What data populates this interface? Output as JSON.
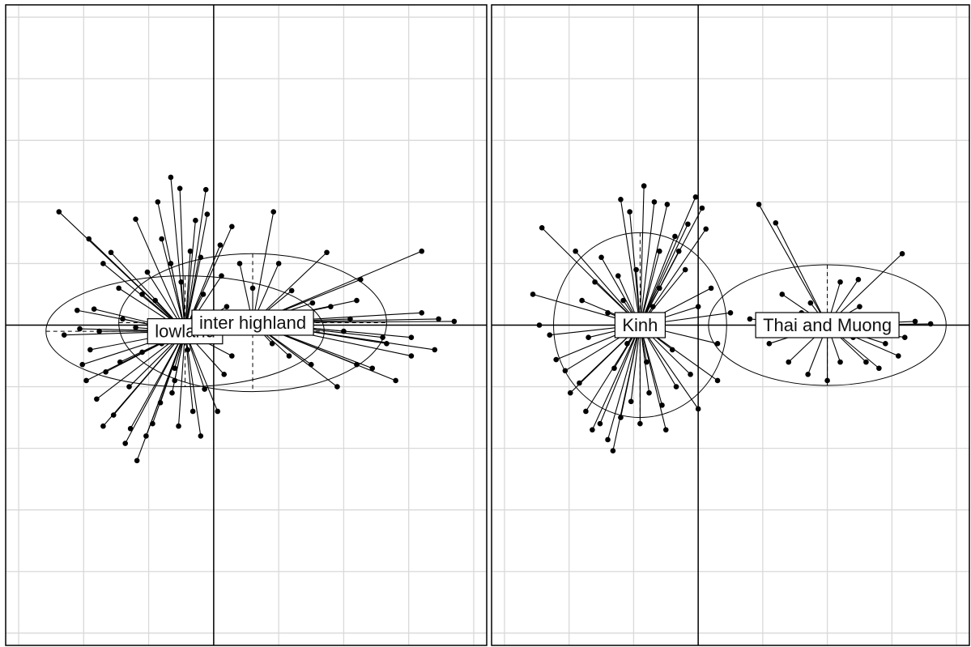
{
  "chart_data": [
    {
      "type": "scatter",
      "subtype": "class-star-ellipse",
      "xlim": [
        -1.6,
        2.1
      ],
      "ylim": [
        -2.6,
        2.6
      ],
      "grid": true,
      "grid_step": 0.5,
      "grid_color": "#d9d9d9",
      "axis_color": "#000000",
      "groups": [
        {
          "name": "lowland",
          "center": [
            -0.22,
            -0.05
          ],
          "ellipse": {
            "rx": 1.07,
            "ry": 0.45,
            "rotation_deg": 0
          },
          "points": [
            [
              -1.19,
              0.92
            ],
            [
              -0.96,
              0.7
            ],
            [
              -0.79,
              0.59
            ],
            [
              -0.6,
              0.86
            ],
            [
              -0.43,
              1.0
            ],
            [
              -0.33,
              1.2
            ],
            [
              -0.06,
              1.1
            ],
            [
              -0.14,
              0.85
            ],
            [
              -0.26,
              1.11
            ],
            [
              -0.51,
              0.43
            ],
            [
              -0.73,
              0.3
            ],
            [
              -0.92,
              0.13
            ],
            [
              -1.05,
              0.12
            ],
            [
              -0.7,
              0.05
            ],
            [
              -0.45,
              0.2
            ],
            [
              -0.33,
              0.5
            ],
            [
              -0.1,
              0.55
            ],
            [
              0.06,
              0.4
            ],
            [
              0.14,
              0.8
            ],
            [
              0.05,
              0.65
            ],
            [
              -0.18,
              0.6
            ],
            [
              -0.08,
              0.25
            ],
            [
              0.1,
              0.15
            ],
            [
              -0.6,
              -0.02
            ],
            [
              -0.88,
              -0.05
            ],
            [
              -1.03,
              -0.03
            ],
            [
              -1.15,
              -0.08
            ],
            [
              -1.01,
              -0.32
            ],
            [
              -0.98,
              -0.45
            ],
            [
              -0.9,
              -0.6
            ],
            [
              -0.85,
              -0.82
            ],
            [
              -0.77,
              -0.73
            ],
            [
              -0.68,
              -0.96
            ],
            [
              -0.64,
              -0.84
            ],
            [
              -0.59,
              -1.1
            ],
            [
              -0.52,
              -0.9
            ],
            [
              -0.47,
              -0.8
            ],
            [
              -0.41,
              -0.63
            ],
            [
              -0.32,
              -0.55
            ],
            [
              -0.3,
              -0.35
            ],
            [
              -0.27,
              -0.82
            ],
            [
              -0.3,
              -0.45
            ],
            [
              -0.16,
              -0.7
            ],
            [
              -0.07,
              -0.52
            ],
            [
              0.03,
              -0.7
            ],
            [
              0.08,
              -0.4
            ],
            [
              0.14,
              -0.25
            ],
            [
              -0.55,
              -0.22
            ],
            [
              -0.72,
              -0.3
            ],
            [
              -0.4,
              -0.15
            ],
            [
              -0.2,
              -0.2
            ],
            [
              -0.1,
              -0.9
            ],
            [
              -0.83,
              -0.38
            ],
            [
              -0.95,
              -0.2
            ],
            [
              -0.65,
              -0.5
            ],
            [
              -0.25,
              0.35
            ],
            [
              -0.4,
              0.7
            ],
            [
              -0.55,
              0.25
            ],
            [
              -0.85,
              0.5
            ],
            [
              -0.05,
              0.9
            ]
          ]
        },
        {
          "name": "inter highland",
          "center": [
            0.3,
            0.02
          ],
          "ellipse": {
            "rx": 1.03,
            "ry": 0.56,
            "rotation_deg": 0
          },
          "points": [
            [
              0.46,
              0.92
            ],
            [
              0.87,
              0.59
            ],
            [
              1.13,
              0.37
            ],
            [
              1.6,
              0.6
            ],
            [
              1.73,
              0.05
            ],
            [
              1.85,
              0.03
            ],
            [
              1.7,
              -0.2
            ],
            [
              1.52,
              -0.25
            ],
            [
              1.4,
              -0.45
            ],
            [
              1.22,
              -0.35
            ],
            [
              1.1,
              -0.32
            ],
            [
              0.95,
              -0.5
            ],
            [
              0.75,
              -0.32
            ],
            [
              0.58,
              -0.25
            ],
            [
              0.45,
              -0.15
            ],
            [
              0.4,
              0.05
            ],
            [
              0.6,
              0.28
            ],
            [
              0.5,
              0.5
            ],
            [
              0.76,
              0.18
            ],
            [
              1.05,
              0.05
            ],
            [
              1.3,
              -0.1
            ],
            [
              1.52,
              -0.1
            ],
            [
              1.6,
              0.1
            ],
            [
              0.9,
              0.15
            ],
            [
              1.0,
              -0.05
            ],
            [
              0.2,
              0.5
            ],
            [
              0.3,
              0.3
            ],
            [
              1.1,
              0.2
            ],
            [
              1.33,
              -0.15
            ],
            [
              0.67,
              0.1
            ]
          ]
        }
      ]
    },
    {
      "type": "scatter",
      "subtype": "class-star-ellipse",
      "xlim": [
        -1.6,
        2.1
      ],
      "ylim": [
        -2.6,
        2.6
      ],
      "grid": true,
      "grid_step": 0.5,
      "grid_color": "#d9d9d9",
      "axis_color": "#000000",
      "groups": [
        {
          "name": "Kinh",
          "center": [
            -0.45,
            0.0
          ],
          "ellipse": {
            "rx": 0.67,
            "ry": 0.75,
            "rotation_deg": 0
          },
          "points": [
            [
              -1.21,
              0.79
            ],
            [
              -1.28,
              0.25
            ],
            [
              -1.23,
              0.0
            ],
            [
              -1.15,
              -0.08
            ],
            [
              -1.1,
              -0.28
            ],
            [
              -1.03,
              -0.37
            ],
            [
              -0.99,
              -0.55
            ],
            [
              -0.92,
              -0.47
            ],
            [
              -0.87,
              -0.7
            ],
            [
              -0.82,
              -0.85
            ],
            [
              -0.76,
              -0.8
            ],
            [
              -0.7,
              -0.93
            ],
            [
              -0.66,
              -1.02
            ],
            [
              -0.6,
              -0.75
            ],
            [
              -0.52,
              -0.62
            ],
            [
              -0.45,
              -0.8
            ],
            [
              -0.38,
              -0.55
            ],
            [
              -0.28,
              -0.65
            ],
            [
              -0.17,
              -0.5
            ],
            [
              -0.06,
              -0.4
            ],
            [
              0.0,
              -0.68
            ],
            [
              0.15,
              -0.45
            ],
            [
              -0.6,
              1.02
            ],
            [
              -0.53,
              0.92
            ],
            [
              -0.42,
              1.13
            ],
            [
              -0.34,
              1.0
            ],
            [
              -0.24,
              0.98
            ],
            [
              -0.02,
              1.04
            ],
            [
              0.03,
              0.95
            ],
            [
              0.06,
              0.78
            ],
            [
              -0.08,
              0.82
            ],
            [
              -0.18,
              0.72
            ],
            [
              -0.3,
              0.6
            ],
            [
              -0.48,
              0.45
            ],
            [
              -0.62,
              0.4
            ],
            [
              -0.8,
              0.35
            ],
            [
              -0.95,
              0.6
            ],
            [
              -0.58,
              0.2
            ],
            [
              -0.7,
              0.1
            ],
            [
              -0.3,
              0.3
            ],
            [
              -0.1,
              0.45
            ],
            [
              0.1,
              0.3
            ],
            [
              0.25,
              0.1
            ],
            [
              0.15,
              -0.15
            ],
            [
              -0.2,
              -0.2
            ],
            [
              -0.35,
              0.15
            ],
            [
              -0.55,
              -0.15
            ],
            [
              -0.85,
              -0.1
            ],
            [
              -0.9,
              0.2
            ],
            [
              -0.15,
              0.6
            ],
            [
              0.0,
              0.15
            ],
            [
              -0.75,
              0.55
            ],
            [
              -0.65,
              -0.35
            ],
            [
              -0.4,
              -0.3
            ],
            [
              -0.25,
              -0.85
            ]
          ]
        },
        {
          "name": "Thai and Muong",
          "center": [
            1.0,
            0.0
          ],
          "ellipse": {
            "rx": 0.92,
            "ry": 0.49,
            "rotation_deg": 0
          },
          "points": [
            [
              0.47,
              0.98
            ],
            [
              0.6,
              0.83
            ],
            [
              0.87,
              0.18
            ],
            [
              1.1,
              0.35
            ],
            [
              1.24,
              0.37
            ],
            [
              1.58,
              0.58
            ],
            [
              1.68,
              0.03
            ],
            [
              1.8,
              0.01
            ],
            [
              1.6,
              -0.1
            ],
            [
              1.55,
              -0.25
            ],
            [
              1.4,
              -0.35
            ],
            [
              1.3,
              -0.3
            ],
            [
              1.1,
              -0.3
            ],
            [
              1.0,
              -0.45
            ],
            [
              0.85,
              -0.4
            ],
            [
              0.7,
              -0.3
            ],
            [
              0.55,
              -0.15
            ],
            [
              0.4,
              0.05
            ],
            [
              0.65,
              0.25
            ],
            [
              0.8,
              0.1
            ],
            [
              1.2,
              -0.1
            ],
            [
              1.45,
              -0.15
            ],
            [
              1.25,
              0.15
            ],
            [
              0.95,
              0.05
            ],
            [
              1.4,
              0.05
            ]
          ]
        }
      ]
    }
  ]
}
